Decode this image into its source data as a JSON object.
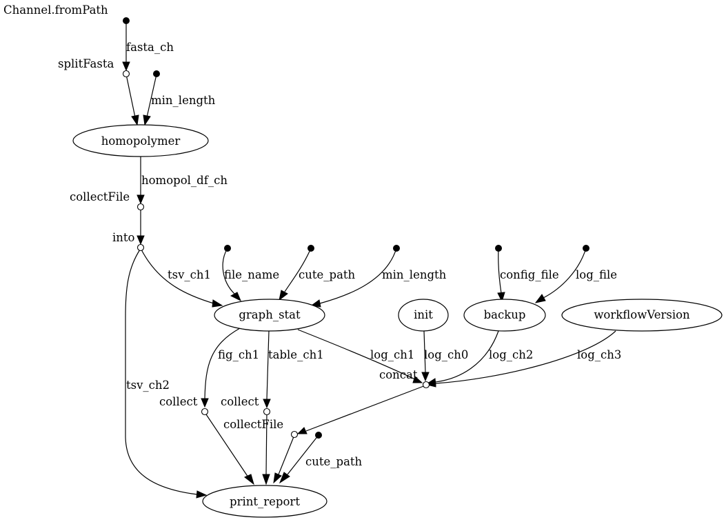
{
  "diagram": {
    "nodes": {
      "channel_fromPath": "Channel.fromPath",
      "splitFasta": "splitFasta",
      "homopolymer": "homopolymer",
      "collectFile_1": "collectFile",
      "into": "into",
      "graph_stat": "graph_stat",
      "init": "init",
      "backup": "backup",
      "workflowVersion": "workflowVersion",
      "concat": "concat",
      "collect_1": "collect",
      "collect_2": "collect",
      "collectFile_2": "collectFile",
      "print_report": "print_report"
    },
    "edges": {
      "fasta_ch": "fasta_ch",
      "min_length_1": "min_length",
      "homopol_df_ch": "homopol_df_ch",
      "tsv_ch1": "tsv_ch1",
      "file_name": "file_name",
      "cute_path_1": "cute_path",
      "min_length_2": "min_length",
      "config_file": "config_file",
      "log_file": "log_file",
      "tsv_ch2": "tsv_ch2",
      "fig_ch1": "fig_ch1",
      "table_ch1": "table_ch1",
      "log_ch1": "log_ch1",
      "log_ch0": "log_ch0",
      "log_ch2": "log_ch2",
      "log_ch3": "log_ch3",
      "cute_path_2": "cute_path"
    }
  }
}
